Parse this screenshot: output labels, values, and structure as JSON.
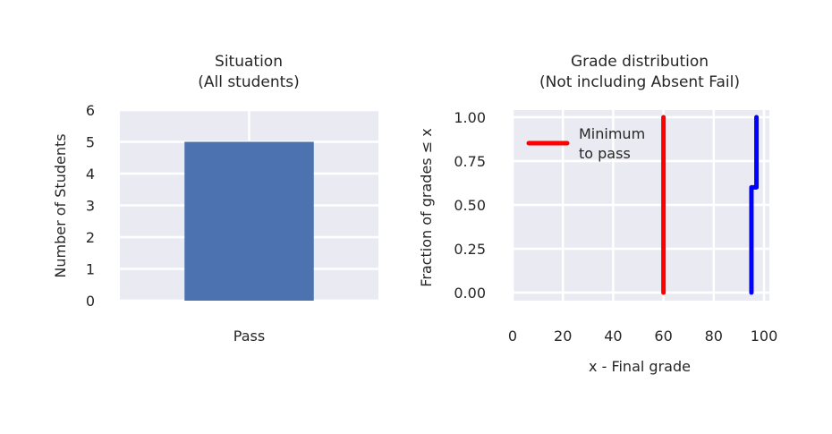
{
  "chart_data": [
    {
      "type": "bar",
      "title_line1": "Situation",
      "title_line2": "(All students)",
      "xlabel": "",
      "ylabel": "Number of Students",
      "categories": [
        "Pass"
      ],
      "values": [
        5
      ],
      "ylim": [
        0,
        6
      ],
      "yticks": [
        "0",
        "1",
        "2",
        "3",
        "4",
        "5",
        "6"
      ],
      "grid": true,
      "bar_color": "#4c72b0"
    },
    {
      "type": "line",
      "title_line1": "Grade distribution",
      "title_line2": "(Not including Absent Fail)",
      "xlabel": "x - Final grade",
      "ylabel": "Fraction of grades ≤ x",
      "xlim": [
        0,
        100
      ],
      "ylim": [
        0,
        1
      ],
      "xticks": [
        "0",
        "20",
        "40",
        "60",
        "80",
        "100"
      ],
      "yticks": [
        "0.00",
        "0.25",
        "0.50",
        "0.75",
        "1.00"
      ],
      "grid": true,
      "legend_position": "upper-left",
      "series": [
        {
          "name": "Minimum to pass",
          "legend_line1": "Minimum",
          "legend_line2": "to pass",
          "color": "#ff0000",
          "x": [
            60,
            60
          ],
          "y": [
            0,
            1
          ]
        },
        {
          "color": "#0000ff",
          "x": [
            95,
            95,
            97,
            97
          ],
          "y": [
            0,
            0.6,
            0.6,
            1
          ]
        }
      ]
    }
  ]
}
